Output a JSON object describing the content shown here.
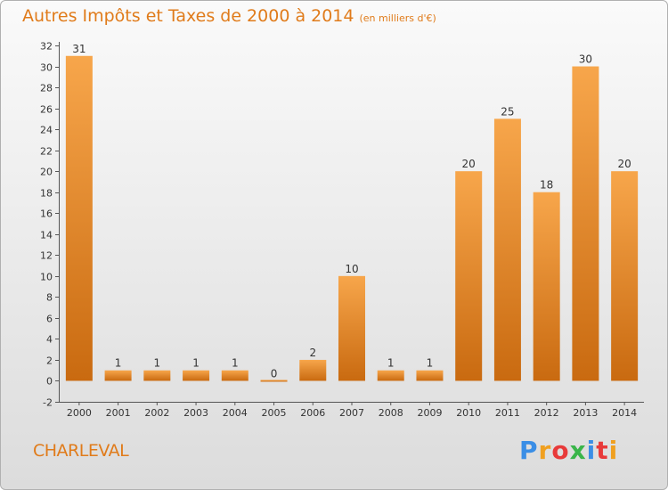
{
  "header": {
    "title": "Autres Impôts et Taxes de 2000 à 2014",
    "unit": "(en milliers d'€)"
  },
  "location": "CHARLEVAL",
  "logo": {
    "text": "Proxiti",
    "letter_colors": [
      "#3a8ee6",
      "#f0a020",
      "#e83a3a",
      "#3ab54a",
      "#3a8ee6",
      "#e83a3a",
      "#f0a020"
    ]
  },
  "colors": {
    "bar_light": "#f7a64b",
    "bar_dark": "#c96a10",
    "accent": "#e07b1a"
  },
  "chart_data": {
    "type": "bar",
    "categories": [
      "2000",
      "2001",
      "2002",
      "2003",
      "2004",
      "2005",
      "2006",
      "2007",
      "2008",
      "2009",
      "2010",
      "2011",
      "2012",
      "2013",
      "2014"
    ],
    "values": [
      31,
      1,
      1,
      1,
      1,
      0,
      2,
      10,
      1,
      1,
      20,
      25,
      18,
      30,
      20
    ],
    "ylim": [
      -2,
      32
    ],
    "yticks": [
      -2,
      0,
      2,
      4,
      6,
      8,
      10,
      12,
      14,
      16,
      18,
      20,
      22,
      24,
      26,
      28,
      30,
      32
    ],
    "grid": false,
    "data_labels": true
  }
}
